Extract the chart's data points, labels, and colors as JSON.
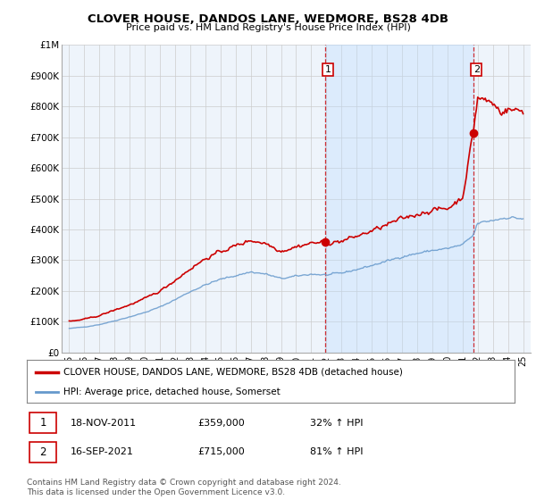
{
  "title": "CLOVER HOUSE, DANDOS LANE, WEDMORE, BS28 4DB",
  "subtitle": "Price paid vs. HM Land Registry's House Price Index (HPI)",
  "ylim": [
    0,
    1000000
  ],
  "yticks": [
    0,
    100000,
    200000,
    300000,
    400000,
    500000,
    600000,
    700000,
    800000,
    900000,
    1000000
  ],
  "ytick_labels": [
    "£0",
    "£100K",
    "£200K",
    "£300K",
    "£400K",
    "£500K",
    "£600K",
    "£700K",
    "£800K",
    "£900K",
    "£1M"
  ],
  "hpi_color": "#6699cc",
  "property_color": "#cc0000",
  "shade_color": "#ddeeff",
  "transaction1": {
    "date": "18-NOV-2011",
    "price": 359000,
    "label": "1",
    "pct": "32% ↑ HPI"
  },
  "transaction2": {
    "date": "16-SEP-2021",
    "price": 715000,
    "label": "2",
    "pct": "81% ↑ HPI"
  },
  "legend_property": "CLOVER HOUSE, DANDOS LANE, WEDMORE, BS28 4DB (detached house)",
  "legend_hpi": "HPI: Average price, detached house, Somerset",
  "footnote": "Contains HM Land Registry data © Crown copyright and database right 2024.\nThis data is licensed under the Open Government Licence v3.0.",
  "marker1_x": 2011.9,
  "marker1_y": 359000,
  "marker2_x": 2021.7,
  "marker2_y": 715000,
  "vline1_x": 2011.9,
  "vline2_x": 2021.7,
  "background_color": "#ffffff",
  "grid_color": "#cccccc",
  "xlim": [
    1994.5,
    2025.5
  ],
  "xtick_years": [
    1995,
    1996,
    1997,
    1998,
    1999,
    2000,
    2001,
    2002,
    2003,
    2004,
    2005,
    2006,
    2007,
    2008,
    2009,
    2010,
    2011,
    2012,
    2013,
    2014,
    2015,
    2016,
    2017,
    2018,
    2019,
    2020,
    2021,
    2022,
    2023,
    2024,
    2025
  ],
  "xtick_labels": [
    "95",
    "96",
    "97",
    "98",
    "99",
    "00",
    "01",
    "02",
    "03",
    "04",
    "05",
    "06",
    "07",
    "08",
    "09",
    "10",
    "11",
    "12",
    "13",
    "14",
    "15",
    "16",
    "17",
    "18",
    "19",
    "20",
    "21",
    "22",
    "23",
    "24",
    "25"
  ]
}
